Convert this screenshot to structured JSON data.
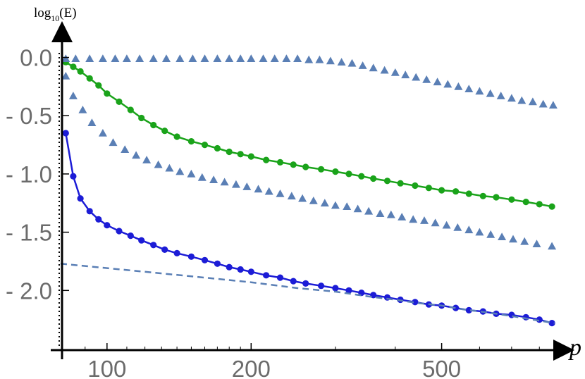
{
  "chart_data": {
    "type": "line",
    "xlabel": "p",
    "ylabel": "log10(E)",
    "ylabel_base": "log",
    "ylabel_sub": "10",
    "ylabel_arg": "(E)",
    "x_scale": "log",
    "xlim": [
      80,
      900
    ],
    "ylim": [
      -2.5,
      0.1
    ],
    "x_ticks": [
      100,
      200,
      500
    ],
    "x_tick_labels": [
      "100",
      "200",
      "500"
    ],
    "y_ticks": [
      0.0,
      -0.5,
      -1.0,
      -1.5,
      -2.0
    ],
    "y_tick_labels": [
      "0.0",
      "- 0.5",
      "- 1.0",
      "- 1.5",
      "- 2.0"
    ],
    "grid": false,
    "colors": {
      "green": "#1aa31a",
      "blue": "#1c1cd6",
      "triangles": "#5a7fb5",
      "dashed": "#5a7fb5",
      "axis": "#000000",
      "ticks": "#6b6b6b"
    },
    "series": [
      {
        "kind": "line-markers",
        "color": "green",
        "points": [
          [
            82,
            -0.04
          ],
          [
            85,
            -0.08
          ],
          [
            88,
            -0.12
          ],
          [
            92,
            -0.18
          ],
          [
            96,
            -0.24
          ],
          [
            100,
            -0.31
          ],
          [
            106,
            -0.38
          ],
          [
            112,
            -0.45
          ],
          [
            118,
            -0.52
          ],
          [
            125,
            -0.58
          ],
          [
            132,
            -0.63
          ],
          [
            140,
            -0.68
          ],
          [
            150,
            -0.72
          ],
          [
            160,
            -0.75
          ],
          [
            170,
            -0.78
          ],
          [
            180,
            -0.81
          ],
          [
            190,
            -0.83
          ],
          [
            200,
            -0.85
          ],
          [
            215,
            -0.88
          ],
          [
            230,
            -0.9
          ],
          [
            245,
            -0.92
          ],
          [
            260,
            -0.94
          ],
          [
            280,
            -0.96
          ],
          [
            300,
            -0.98
          ],
          [
            320,
            -1.0
          ],
          [
            340,
            -1.02
          ],
          [
            360,
            -1.04
          ],
          [
            385,
            -1.06
          ],
          [
            410,
            -1.08
          ],
          [
            440,
            -1.1
          ],
          [
            470,
            -1.12
          ],
          [
            500,
            -1.14
          ],
          [
            535,
            -1.15
          ],
          [
            570,
            -1.17
          ],
          [
            610,
            -1.19
          ],
          [
            650,
            -1.2
          ],
          [
            700,
            -1.22
          ],
          [
            750,
            -1.24
          ],
          [
            800,
            -1.26
          ],
          [
            850,
            -1.28
          ]
        ]
      },
      {
        "kind": "line-markers",
        "color": "blue",
        "points": [
          [
            82,
            -0.65
          ],
          [
            85,
            -1.02
          ],
          [
            88,
            -1.21
          ],
          [
            92,
            -1.32
          ],
          [
            96,
            -1.39
          ],
          [
            100,
            -1.44
          ],
          [
            106,
            -1.49
          ],
          [
            112,
            -1.53
          ],
          [
            118,
            -1.57
          ],
          [
            125,
            -1.61
          ],
          [
            132,
            -1.65
          ],
          [
            140,
            -1.68
          ],
          [
            150,
            -1.71
          ],
          [
            160,
            -1.74
          ],
          [
            170,
            -1.77
          ],
          [
            180,
            -1.8
          ],
          [
            190,
            -1.82
          ],
          [
            200,
            -1.84
          ],
          [
            215,
            -1.87
          ],
          [
            230,
            -1.89
          ],
          [
            245,
            -1.92
          ],
          [
            260,
            -1.94
          ],
          [
            280,
            -1.96
          ],
          [
            300,
            -1.98
          ],
          [
            320,
            -2.0
          ],
          [
            340,
            -2.02
          ],
          [
            360,
            -2.04
          ],
          [
            385,
            -2.06
          ],
          [
            410,
            -2.08
          ],
          [
            440,
            -2.1
          ],
          [
            470,
            -2.12
          ],
          [
            500,
            -2.13
          ],
          [
            535,
            -2.15
          ],
          [
            570,
            -2.17
          ],
          [
            610,
            -2.18
          ],
          [
            650,
            -2.2
          ],
          [
            700,
            -2.21
          ],
          [
            750,
            -2.23
          ],
          [
            800,
            -2.25
          ],
          [
            850,
            -2.28
          ]
        ]
      },
      {
        "kind": "triangles",
        "color": "triangles",
        "points": [
          [
            82,
            -0.01
          ],
          [
            86,
            -0.01
          ],
          [
            92,
            -0.01
          ],
          [
            98,
            -0.01
          ],
          [
            104,
            -0.01
          ],
          [
            110,
            -0.01
          ],
          [
            117,
            -0.01
          ],
          [
            125,
            -0.01
          ],
          [
            133,
            -0.01
          ],
          [
            142,
            -0.01
          ],
          [
            151,
            -0.01
          ],
          [
            160,
            -0.01
          ],
          [
            170,
            -0.01
          ],
          [
            180,
            -0.01
          ],
          [
            190,
            -0.01
          ],
          [
            200,
            -0.01
          ],
          [
            212,
            -0.01
          ],
          [
            224,
            -0.01
          ],
          [
            237,
            -0.01
          ],
          [
            250,
            -0.01
          ],
          [
            264,
            -0.02
          ],
          [
            278,
            -0.02
          ],
          [
            293,
            -0.03
          ],
          [
            309,
            -0.04
          ],
          [
            325,
            -0.05
          ],
          [
            342,
            -0.07
          ],
          [
            360,
            -0.09
          ],
          [
            380,
            -0.11
          ],
          [
            400,
            -0.13
          ],
          [
            420,
            -0.15
          ],
          [
            442,
            -0.17
          ],
          [
            465,
            -0.19
          ],
          [
            490,
            -0.21
          ],
          [
            515,
            -0.23
          ],
          [
            542,
            -0.25
          ],
          [
            570,
            -0.27
          ],
          [
            600,
            -0.29
          ],
          [
            632,
            -0.31
          ],
          [
            665,
            -0.33
          ],
          [
            700,
            -0.35
          ],
          [
            735,
            -0.37
          ],
          [
            775,
            -0.38
          ],
          [
            815,
            -0.4
          ],
          [
            855,
            -0.41
          ]
        ]
      },
      {
        "kind": "triangles",
        "color": "triangles",
        "points": [
          [
            82,
            -0.16
          ],
          [
            85,
            -0.33
          ],
          [
            89,
            -0.45
          ],
          [
            93,
            -0.56
          ],
          [
            98,
            -0.65
          ],
          [
            103,
            -0.73
          ],
          [
            109,
            -0.79
          ],
          [
            115,
            -0.84
          ],
          [
            121,
            -0.88
          ],
          [
            128,
            -0.92
          ],
          [
            135,
            -0.95
          ],
          [
            142,
            -0.98
          ],
          [
            150,
            -1.0
          ],
          [
            158,
            -1.03
          ],
          [
            167,
            -1.05
          ],
          [
            176,
            -1.07
          ],
          [
            186,
            -1.09
          ],
          [
            196,
            -1.11
          ],
          [
            207,
            -1.13
          ],
          [
            218,
            -1.15
          ],
          [
            230,
            -1.17
          ],
          [
            243,
            -1.19
          ],
          [
            256,
            -1.21
          ],
          [
            270,
            -1.23
          ],
          [
            285,
            -1.25
          ],
          [
            300,
            -1.27
          ],
          [
            317,
            -1.28
          ],
          [
            334,
            -1.3
          ],
          [
            352,
            -1.32
          ],
          [
            372,
            -1.34
          ],
          [
            392,
            -1.35
          ],
          [
            413,
            -1.37
          ],
          [
            436,
            -1.39
          ],
          [
            460,
            -1.4
          ],
          [
            485,
            -1.42
          ],
          [
            512,
            -1.44
          ],
          [
            540,
            -1.46
          ],
          [
            570,
            -1.48
          ],
          [
            600,
            -1.5
          ],
          [
            633,
            -1.52
          ],
          [
            668,
            -1.54
          ],
          [
            705,
            -1.56
          ],
          [
            745,
            -1.58
          ],
          [
            790,
            -1.6
          ],
          [
            850,
            -1.62
          ]
        ]
      },
      {
        "kind": "dashed",
        "color": "dashed",
        "points": [
          [
            80,
            -1.77
          ],
          [
            120,
            -1.84
          ],
          [
            160,
            -1.89
          ],
          [
            200,
            -1.93
          ],
          [
            250,
            -1.98
          ],
          [
            300,
            -2.01
          ],
          [
            350,
            -2.05
          ],
          [
            400,
            -2.08
          ],
          [
            450,
            -2.11
          ],
          [
            500,
            -2.13
          ],
          [
            550,
            -2.16
          ],
          [
            600,
            -2.18
          ],
          [
            650,
            -2.2
          ],
          [
            700,
            -2.22
          ],
          [
            750,
            -2.24
          ],
          [
            800,
            -2.26
          ],
          [
            860,
            -2.28
          ]
        ]
      }
    ]
  }
}
